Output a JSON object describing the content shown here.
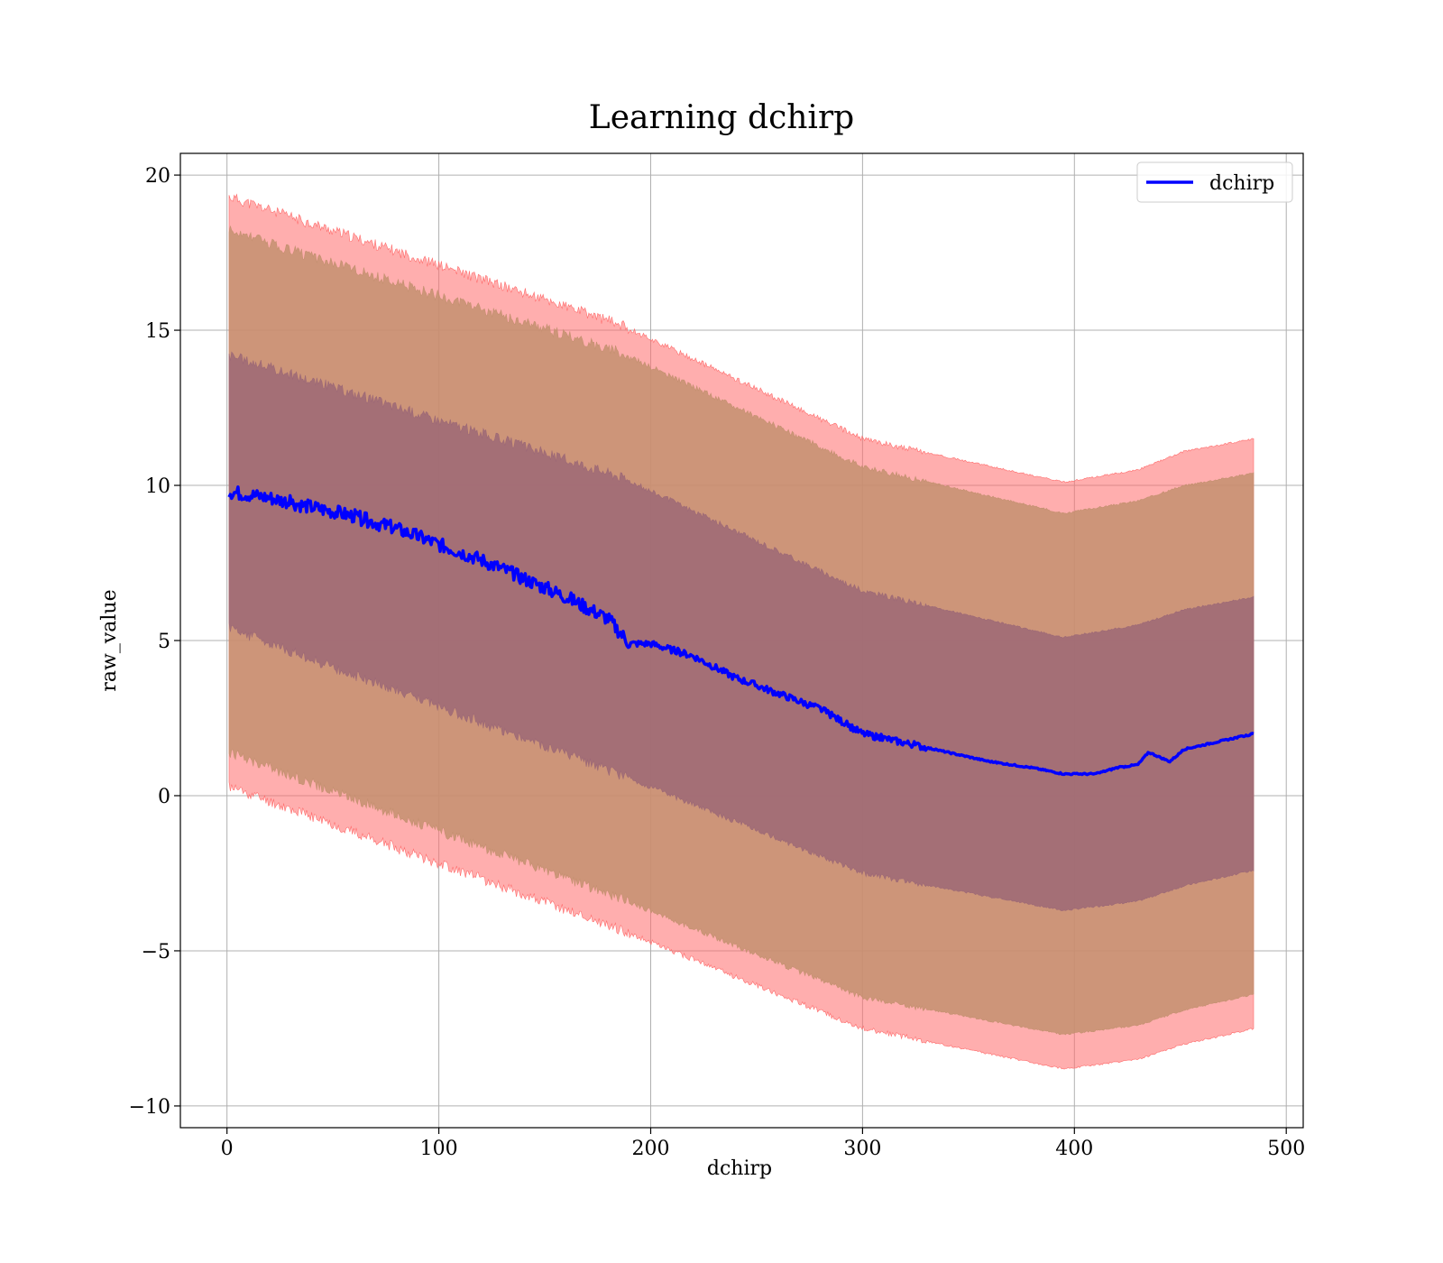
{
  "chart_data": {
    "type": "line",
    "title": "Learning dchirp",
    "xlabel": "dchirp",
    "ylabel": "raw_value",
    "xlim": [
      -22,
      508
    ],
    "ylim": [
      -10.7,
      20.7
    ],
    "xticks": [
      0,
      100,
      200,
      300,
      400,
      500
    ],
    "yticks": [
      -10,
      -5,
      0,
      5,
      10,
      15,
      20
    ],
    "xtick_labels": [
      "0",
      "100",
      "200",
      "300",
      "400",
      "500"
    ],
    "ytick_labels": [
      "−10",
      "−5",
      "0",
      "5",
      "10",
      "15",
      "20"
    ],
    "grid": true,
    "legend": {
      "position": "top-right",
      "entries": [
        "dchirp"
      ]
    },
    "colors": {
      "line": "#0000ff",
      "band_outer": "#ff6b6b",
      "band_middle": "#c49070",
      "band_inner": "#9c6876"
    },
    "series": [
      {
        "name": "dchirp",
        "x": [
          1,
          20,
          40,
          60,
          80,
          100,
          120,
          140,
          160,
          180,
          190,
          200,
          220,
          240,
          260,
          280,
          300,
          320,
          340,
          360,
          380,
          395,
          410,
          420,
          430,
          435,
          445,
          452,
          485
        ],
        "y": [
          9.8,
          9.6,
          9.3,
          9.0,
          8.6,
          8.1,
          7.6,
          7.0,
          6.4,
          5.7,
          4.9,
          4.9,
          4.5,
          3.8,
          3.3,
          2.8,
          2.0,
          1.7,
          1.4,
          1.1,
          0.9,
          0.7,
          0.7,
          0.9,
          1.0,
          1.4,
          1.1,
          1.5,
          2.0
        ]
      },
      {
        "name": "",
        "type": "band",
        "x": [
          1,
          185,
          300,
          395,
          430,
          452,
          485
        ],
        "lower": [
          0.3,
          -4.3,
          -7.5,
          -8.8,
          -8.5,
          -8.0,
          -7.5
        ],
        "upper": [
          19.3,
          15.2,
          11.5,
          10.1,
          10.5,
          11.1,
          11.5
        ]
      },
      {
        "name": "",
        "type": "band",
        "x": [
          1,
          185,
          300,
          395,
          430,
          452,
          485
        ],
        "lower": [
          1.4,
          -3.3,
          -6.5,
          -7.7,
          -7.4,
          -6.9,
          -6.4
        ],
        "upper": [
          18.2,
          14.3,
          10.6,
          9.1,
          9.5,
          10.0,
          10.4
        ]
      },
      {
        "name": "",
        "type": "band",
        "x": [
          1,
          185,
          300,
          395,
          430,
          452,
          485
        ],
        "lower": [
          5.4,
          0.7,
          -2.5,
          -3.7,
          -3.4,
          -2.9,
          -2.4
        ],
        "upper": [
          14.2,
          10.3,
          6.6,
          5.1,
          5.5,
          6.0,
          6.4
        ]
      }
    ]
  }
}
